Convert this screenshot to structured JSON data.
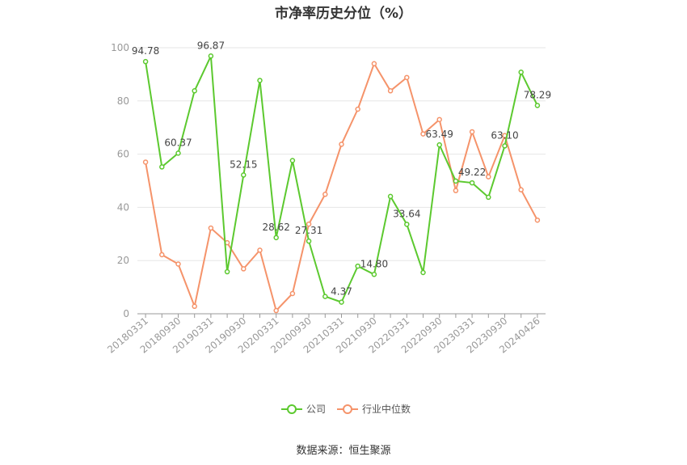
{
  "title": "市净率历史分位（%）",
  "source": "数据来源：恒生聚源",
  "colors": {
    "company": "#5cc92f",
    "industry": "#f5936a",
    "grid": "#e6e6e6",
    "axis": "#999999"
  },
  "legend": {
    "company": "公司",
    "industry": "行业中位数"
  },
  "chart_data": {
    "type": "line",
    "title": "市净率历史分位（%）",
    "ylim": [
      0,
      100
    ],
    "yticks": [
      0,
      20,
      40,
      60,
      80,
      100
    ],
    "xtick_labels": [
      "20180331",
      "20180930",
      "20190331",
      "20190930",
      "20200331",
      "20200930",
      "20210331",
      "20210930",
      "20220331",
      "20220930",
      "20230331",
      "20230930",
      "20240426"
    ],
    "point_count": 25,
    "series": [
      {
        "name": "公司",
        "values": [
          94.78,
          55.2,
          60.37,
          83.8,
          96.87,
          15.8,
          52.15,
          87.7,
          28.62,
          57.6,
          27.31,
          6.5,
          4.37,
          17.9,
          14.8,
          44.1,
          33.64,
          15.5,
          63.49,
          49.9,
          49.22,
          43.8,
          63.1,
          90.8,
          78.29
        ],
        "labels": {
          "0": "94.78",
          "2": "60.37",
          "4": "96.87",
          "6": "52.15",
          "8": "28.62",
          "10": "27.31",
          "12": "4.37",
          "14": "14.80",
          "16": "33.64",
          "18": "63.49",
          "20": "49.22",
          "22": "63.10",
          "24": "78.29"
        }
      },
      {
        "name": "行业中位数",
        "values": [
          57.0,
          22.2,
          18.7,
          2.8,
          32.2,
          26.7,
          16.9,
          23.9,
          1.2,
          7.6,
          33.7,
          44.9,
          63.7,
          76.9,
          94.0,
          83.8,
          88.8,
          67.6,
          73.0,
          46.3,
          68.4,
          51.5,
          67.0,
          46.6,
          35.2
        ]
      }
    ]
  }
}
